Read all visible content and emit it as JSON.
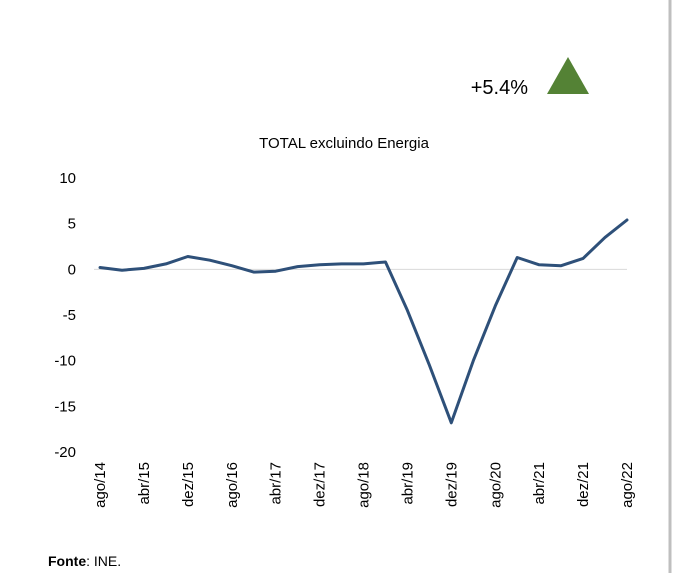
{
  "chart_data": {
    "type": "line",
    "title": "TOTAL excluindo Energia",
    "annotation": "+5.4%",
    "annotation_color": "#548235",
    "note_label": "Fonte",
    "note_text": ": INE.",
    "categories": [
      "ago/14",
      null,
      "abr/15",
      null,
      "dez/15",
      null,
      "ago/16",
      null,
      "abr/17",
      null,
      "dez/17",
      null,
      "ago/18",
      null,
      "abr/19",
      null,
      "dez/19",
      null,
      "ago/20",
      null,
      "abr/21",
      null,
      "dez/21",
      null,
      "ago/22"
    ],
    "series": [
      {
        "name": "TOTAL excluindo Energia",
        "color": "#2e5079",
        "values": [
          0.2,
          -0.1,
          0.1,
          0.6,
          1.4,
          1.0,
          0.4,
          -0.3,
          -0.2,
          0.3,
          0.5,
          0.6,
          0.6,
          0.8,
          -4.5,
          -10.5,
          -16.8,
          -10.0,
          -4.0,
          1.3,
          0.5,
          0.4,
          1.2,
          3.5,
          5.4
        ]
      }
    ],
    "ylim": [
      -20,
      10
    ],
    "yticks": [
      10,
      5,
      0,
      -5,
      -10,
      -15,
      -20
    ],
    "grid": false
  }
}
